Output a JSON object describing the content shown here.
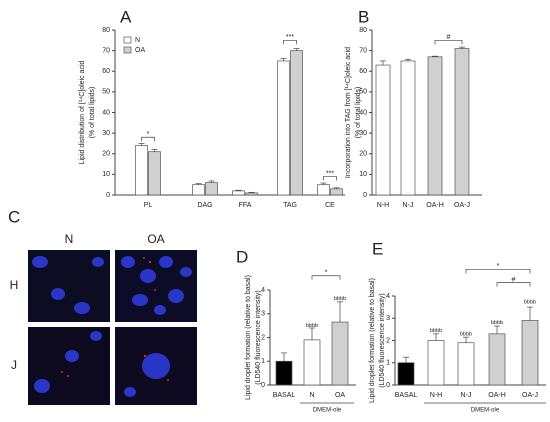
{
  "chart_data": [
    {
      "type": "bar",
      "title": "A",
      "ylabel": [
        "Lipid distribution of [¹⁴C]oleic acid",
        "(% of total lipids)"
      ],
      "categories": [
        "PL",
        "DAG",
        "FFA",
        "TAG",
        "CE"
      ],
      "series": [
        {
          "name": "N",
          "color": "#ffffff",
          "values": [
            24,
            5,
            2,
            65,
            5
          ],
          "errors": [
            1,
            0.5,
            0.3,
            1.2,
            0.8
          ]
        },
        {
          "name": "OA",
          "color": "#d0d0d0",
          "values": [
            21,
            6,
            1,
            70,
            3
          ],
          "errors": [
            1,
            0.8,
            0.3,
            1,
            0.5
          ]
        }
      ],
      "ylim": [
        0,
        80
      ],
      "yticks": [
        0,
        10,
        20,
        30,
        40,
        50,
        60,
        70,
        80
      ],
      "annotations": [
        "*",
        "***",
        "***"
      ]
    },
    {
      "type": "bar",
      "title": "B",
      "ylabel": [
        "Incorporation into TAG from [¹⁴C]oleic acid",
        "(% of total lipids)"
      ],
      "categories": [
        "N-H",
        "N-J",
        "OA-H",
        "OA-J"
      ],
      "series": [
        {
          "colors": [
            "#ffffff",
            "#ffffff",
            "#d0d0d0",
            "#d0d0d0"
          ],
          "values": [
            63,
            65,
            67,
            71
          ],
          "errors": [
            2,
            0.8,
            0.3,
            0.7
          ]
        }
      ],
      "ylim": [
        0,
        80
      ],
      "yticks": [
        0,
        10,
        20,
        30,
        40,
        50,
        60,
        70,
        80
      ],
      "annotations": [
        "#"
      ]
    },
    {
      "type": "image",
      "title": "C",
      "columns": [
        "N",
        "OA"
      ],
      "rows": [
        "H",
        "J"
      ]
    },
    {
      "type": "bar",
      "title": "D",
      "ylabel": [
        "Lipid droplet formation (relative to basal)",
        "(LD540 fluorescence intensity)"
      ],
      "categories": [
        "BASAL",
        "N",
        "OA"
      ],
      "series": [
        {
          "colors": [
            "#000000",
            "#ffffff",
            "#d0d0d0"
          ],
          "values": [
            1.0,
            1.9,
            2.65
          ],
          "errors": [
            0.35,
            0.5,
            0.85
          ]
        }
      ],
      "ylim": [
        0,
        4
      ],
      "yticks": [
        0,
        1,
        2,
        3,
        4
      ],
      "group_label": "DMEM-ole",
      "annotations": [
        "bbbb",
        "bbbb",
        "*"
      ]
    },
    {
      "type": "bar",
      "title": "E",
      "ylabel": [
        "Lipid droplet formation (relative to basal)",
        "(LD540 fluorescence intensity)"
      ],
      "categories": [
        "BASAL",
        "N-H",
        "N-J",
        "OA-H",
        "OA-J"
      ],
      "series": [
        {
          "colors": [
            "#000000",
            "#ffffff",
            "#ffffff",
            "#d0d0d0",
            "#d0d0d0"
          ],
          "values": [
            1.0,
            2.0,
            1.9,
            2.3,
            2.9
          ],
          "errors": [
            0.25,
            0.3,
            0.25,
            0.35,
            0.6
          ]
        }
      ],
      "ylim": [
        0,
        4
      ],
      "yticks": [
        0,
        1,
        2,
        3,
        4
      ],
      "group_label": "DMEM-ole",
      "annotations": [
        "bbbb",
        "bbbb",
        "bbbb",
        "bbbb",
        "*",
        "#"
      ]
    }
  ]
}
